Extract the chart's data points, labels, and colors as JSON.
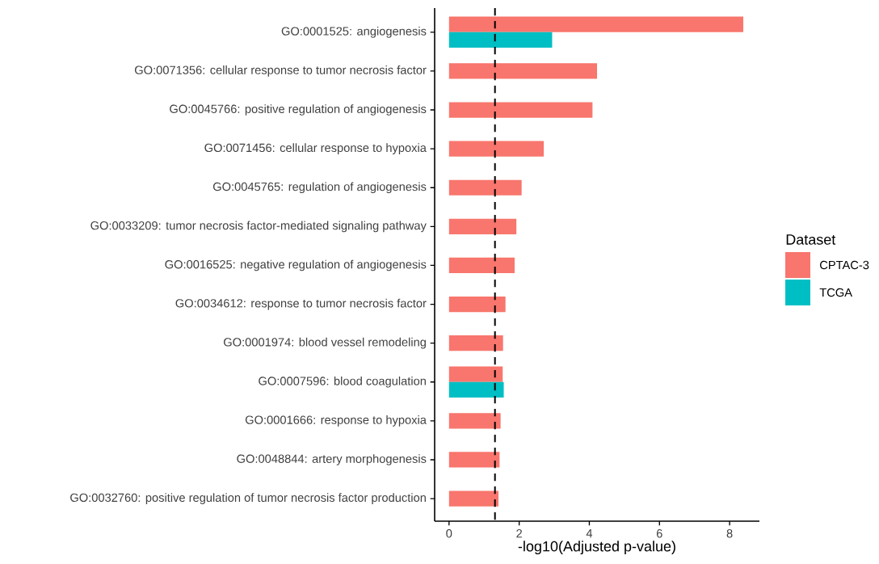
{
  "chart_data": {
    "type": "bar",
    "orientation": "horizontal",
    "xlabel": "-log10(Adjusted p-value)",
    "legend_title": "Dataset",
    "legend": "right",
    "categories": [
      "GO:0001525: angiogenesis",
      "GO:0071356: cellular response to tumor necrosis factor",
      "GO:0045766: positive regulation of angiogenesis",
      "GO:0071456: cellular response to hypoxia",
      "GO:0045765: regulation of angiogenesis",
      "GO:0033209: tumor necrosis factor-mediated signaling pathway",
      "GO:0016525: negative regulation of angiogenesis",
      "GO:0034612: response to tumor necrosis factor",
      "GO:0001974: blood vessel remodeling",
      "GO:0007596: blood coagulation",
      "GO:0001666: response to hypoxia",
      "GO:0048844: artery morphogenesis",
      "GO:0032760: positive regulation of tumor necrosis factor production"
    ],
    "series": [
      {
        "name": "CPTAC-3",
        "color": "#f8766d",
        "values": [
          8.39,
          4.22,
          4.09,
          2.7,
          2.07,
          1.92,
          1.87,
          1.61,
          1.54,
          1.53,
          1.47,
          1.44,
          1.41
        ]
      },
      {
        "name": "TCGA",
        "color": "#00bfc4",
        "values": [
          2.94,
          null,
          null,
          null,
          null,
          null,
          null,
          null,
          null,
          1.56,
          null,
          null,
          null
        ]
      }
    ],
    "xlim": [
      -0.41,
      8.85
    ],
    "xticks": [
      0,
      2,
      4,
      6,
      8
    ],
    "ref_lines": [
      {
        "axis": "x",
        "value": 1.31,
        "color": "#000000",
        "line_style": "dashed"
      }
    ]
  }
}
